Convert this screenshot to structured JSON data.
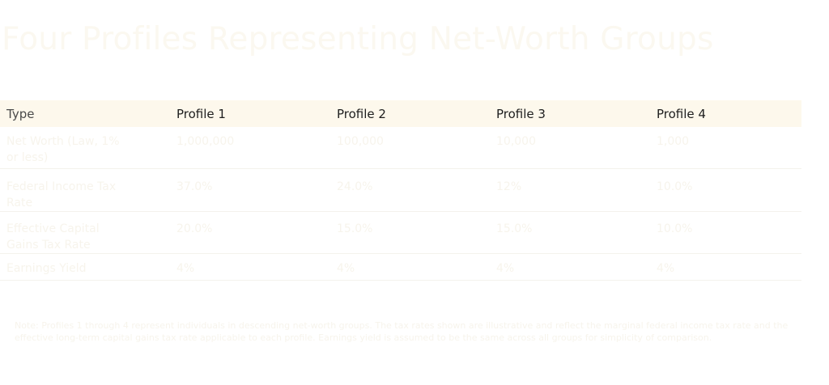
{
  "title": "Four Profiles Representing Net-Worth Groups",
  "table": {
    "headers": [
      "Type",
      "Profile 1",
      "Profile 2",
      "Profile 3",
      "Profile 4"
    ],
    "rows": [
      [
        "Net Worth (Law, 1% or less)",
        "1,000,000",
        "100,000",
        "10,000",
        "1,000"
      ],
      [
        "Federal Income Tax Rate",
        "37.0%",
        "24.0%",
        "12%",
        "10.0%"
      ],
      [
        "Effective Capital Gains Tax Rate",
        "20.0%",
        "15.0%",
        "15.0%",
        "10.0%"
      ],
      [
        "Earnings Yield",
        "4%",
        "4%",
        "4%",
        "4%"
      ]
    ]
  },
  "note": "Note: Profiles 1 through 4 represent individuals in descending net-worth groups. The tax rates shown are illustrative and reflect the marginal federal income tax rate and the effective long-term capital gains tax rate applicable to each profile. Earnings yield is assumed to be the same across all groups for simplicity of comparison."
}
